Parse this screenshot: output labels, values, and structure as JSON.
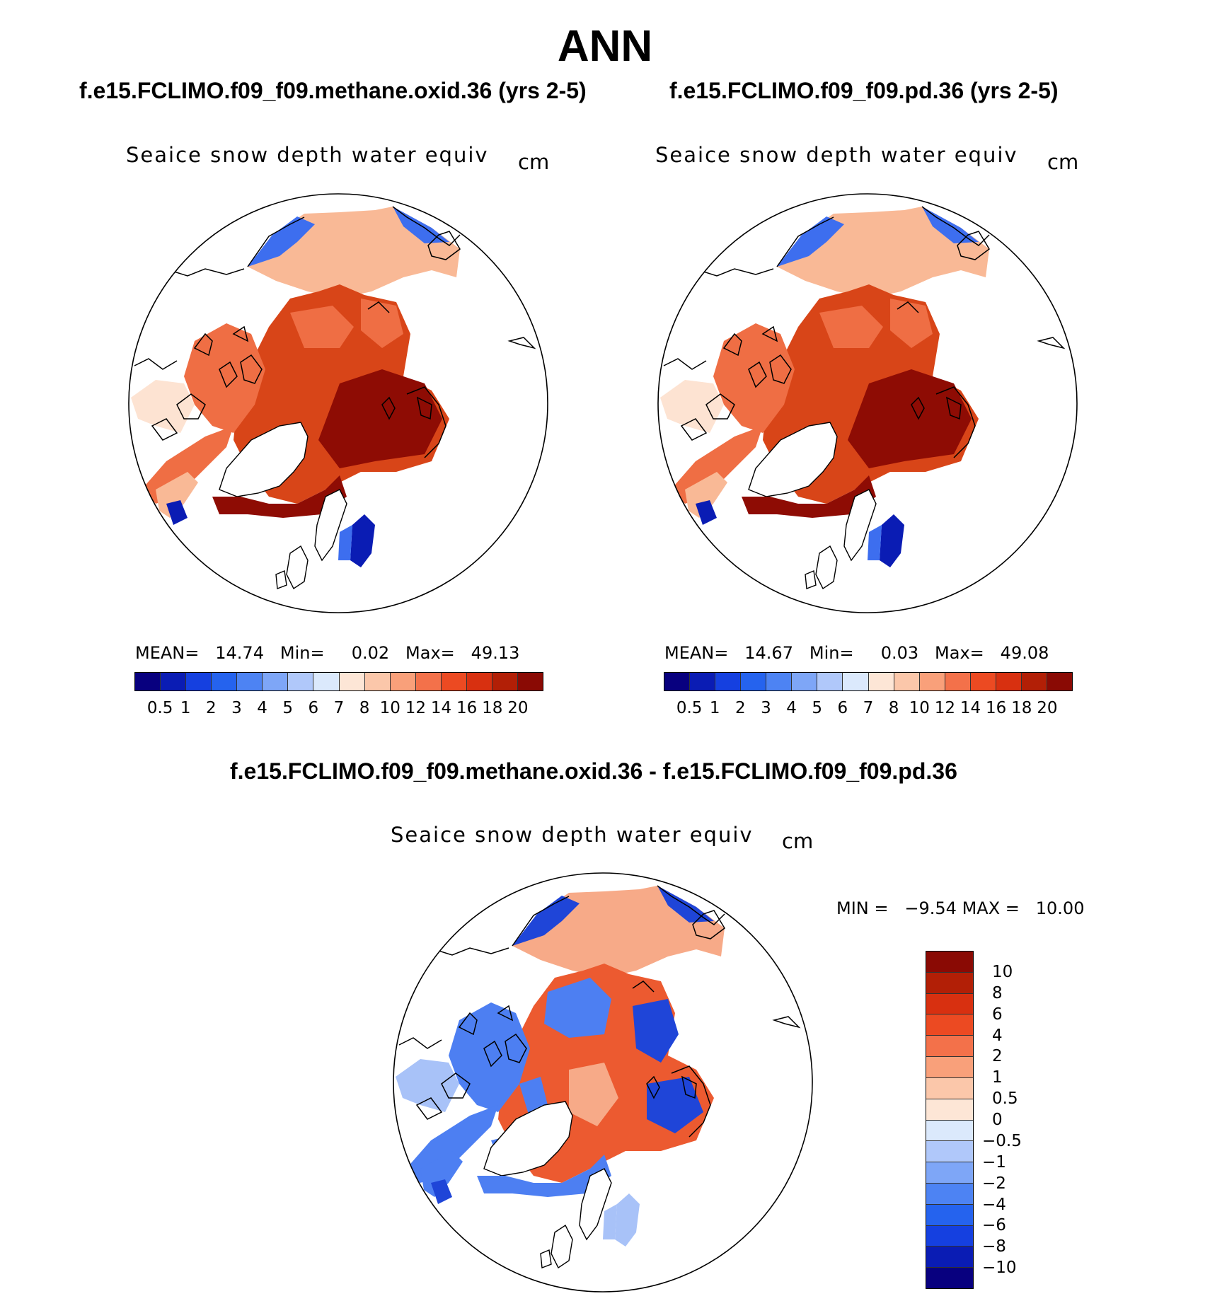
{
  "title": "ANN",
  "panels": [
    {
      "id": "test",
      "title": "f.e15.FCLIMO.f09_f09.methane.oxid.36 (yrs 2-5)",
      "variable": "Seaice snow depth water equiv",
      "units": "cm",
      "mean_label": "MEAN=",
      "mean_value": "14.74",
      "min_label": "Min=",
      "min_value": "0.02",
      "max_label": "Max=",
      "max_value": "49.13"
    },
    {
      "id": "control",
      "title": "f.e15.FCLIMO.f09_f09.pd.36 (yrs 2-5)",
      "variable": "Seaice snow depth water equiv",
      "units": "cm",
      "mean_label": "MEAN=",
      "mean_value": "14.67",
      "min_label": "Min=",
      "min_value": "0.03",
      "max_label": "Max=",
      "max_value": "49.08"
    },
    {
      "id": "difference",
      "title": "f.e15.FCLIMO.f09_f09.methane.oxid.36 - f.e15.FCLIMO.f09_f09.pd.36",
      "variable": "Seaice snow depth water equiv",
      "units": "cm",
      "min_label": "MIN =",
      "min_value": "−9.54",
      "max_label": "MAX =",
      "max_value": "10.00"
    }
  ],
  "colorbars": {
    "abs_levels": [
      "0.5",
      "1",
      "2",
      "3",
      "4",
      "5",
      "6",
      "7",
      "8",
      "10",
      "12",
      "14",
      "16",
      "18",
      "20"
    ],
    "abs_colors": [
      "#08007f",
      "#0a1cb4",
      "#1540e0",
      "#2563ee",
      "#4d83f3",
      "#7ea6f7",
      "#b0c8fa",
      "#dbe9fc",
      "#fde6d6",
      "#fbc7aa",
      "#f9a07a",
      "#f3714a",
      "#ec4a22",
      "#d83010",
      "#b21f06",
      "#8a0a04"
    ],
    "diff_levels": [
      "10",
      "8",
      "6",
      "4",
      "2",
      "1",
      "0.5",
      "0",
      "−0.5",
      "−1",
      "−2",
      "−4",
      "−6",
      "−8",
      "−10"
    ],
    "diff_colors": [
      "#8a0a04",
      "#b21f06",
      "#d83010",
      "#ec4a22",
      "#f3714a",
      "#f9a07a",
      "#fbc7aa",
      "#fde6d6",
      "#dbe9fc",
      "#b0c8fa",
      "#7ea6f7",
      "#4d83f3",
      "#2563ee",
      "#1540e0",
      "#0a1cb4",
      "#08007f"
    ]
  },
  "map_colors": {
    "abs_dark": "#8e0c04",
    "abs_main": "#d84518",
    "abs_mid": "#ef6e44",
    "abs_light": "#f9b996",
    "abs_pale": "#fde3d2",
    "abs_blue_dark": "#0a1cb4",
    "abs_blue": "#3d6eef",
    "diff_red": "#ec5a30",
    "diff_pink": "#f7aa88",
    "diff_blue": "#4d7ff2",
    "diff_blue_dark": "#1f45d8",
    "diff_blue_light": "#a8c2f8",
    "land": "#ffffff"
  }
}
